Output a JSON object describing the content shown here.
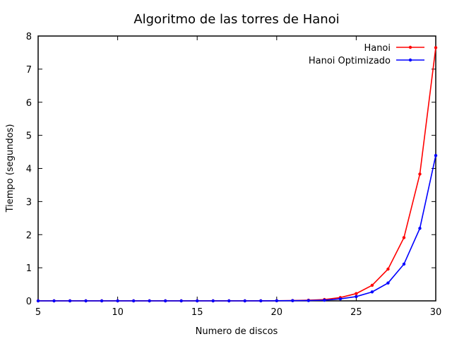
{
  "chart_data": {
    "type": "line",
    "title": "Algoritmo de las torres de Hanoi",
    "xlabel": "Numero de discos",
    "ylabel": "Tiempo (segundos)",
    "xlim": [
      5,
      30
    ],
    "ylim": [
      0,
      8
    ],
    "xticks": [
      5,
      10,
      15,
      20,
      25,
      30
    ],
    "yticks": [
      0,
      1,
      2,
      3,
      4,
      5,
      6,
      7,
      8
    ],
    "grid": false,
    "legend_position": "top-right",
    "x": [
      5,
      6,
      7,
      8,
      9,
      10,
      11,
      12,
      13,
      14,
      15,
      16,
      17,
      18,
      19,
      20,
      21,
      22,
      23,
      24,
      25,
      26,
      27,
      28,
      29,
      30
    ],
    "series": [
      {
        "name": "Hanoi",
        "color": "#ff0000",
        "values": [
          0,
          0,
          0,
          0,
          0,
          0,
          0,
          0,
          0,
          0,
          0,
          0,
          0,
          0,
          0.002,
          0.005,
          0.01,
          0.02,
          0.04,
          0.1,
          0.22,
          0.47,
          0.96,
          1.91,
          3.83,
          7.65
        ]
      },
      {
        "name": "Hanoi Optimizado",
        "color": "#0000ff",
        "values": [
          0,
          0,
          0,
          0,
          0,
          0,
          0,
          0,
          0,
          0,
          0,
          0,
          0,
          0,
          0.001,
          0.003,
          0.006,
          0.01,
          0.02,
          0.06,
          0.13,
          0.27,
          0.54,
          1.11,
          2.19,
          4.39
        ]
      }
    ]
  }
}
